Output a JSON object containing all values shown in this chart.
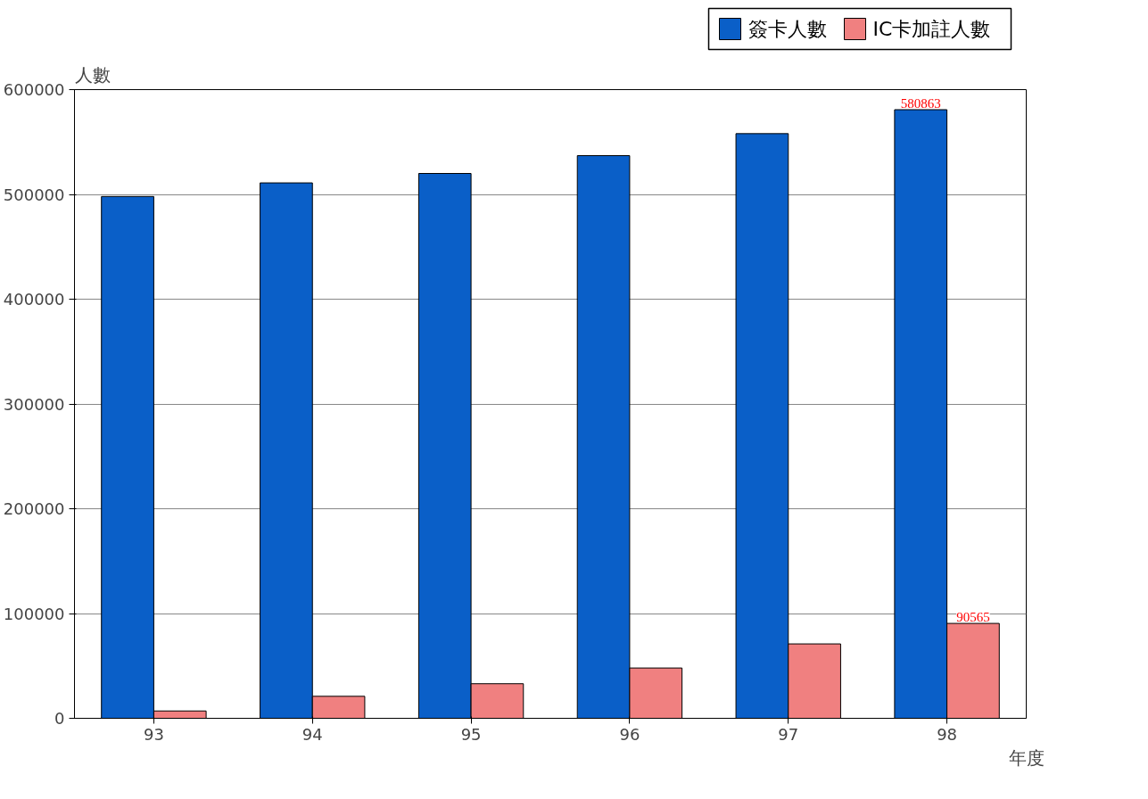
{
  "chart_data": {
    "type": "bar",
    "xlabel": "年度",
    "ylabel": "人數",
    "categories": [
      "93",
      "94",
      "95",
      "96",
      "97",
      "98"
    ],
    "series": [
      {
        "name": "簽卡人數",
        "color": "#0a5fc8",
        "values": [
          498000,
          511000,
          520000,
          537000,
          558000,
          580863
        ],
        "value_labels": [
          null,
          null,
          null,
          null,
          null,
          "580863"
        ]
      },
      {
        "name": "IC卡加註人數",
        "color": "#f08080",
        "values": [
          7000,
          21000,
          33000,
          48000,
          71000,
          90565
        ],
        "value_labels": [
          null,
          null,
          null,
          null,
          null,
          "90565"
        ]
      }
    ],
    "ylim": [
      0,
      600000
    ],
    "yticks": [
      0,
      100000,
      200000,
      300000,
      400000,
      500000,
      600000
    ],
    "grid": "y",
    "legend": "top right"
  }
}
